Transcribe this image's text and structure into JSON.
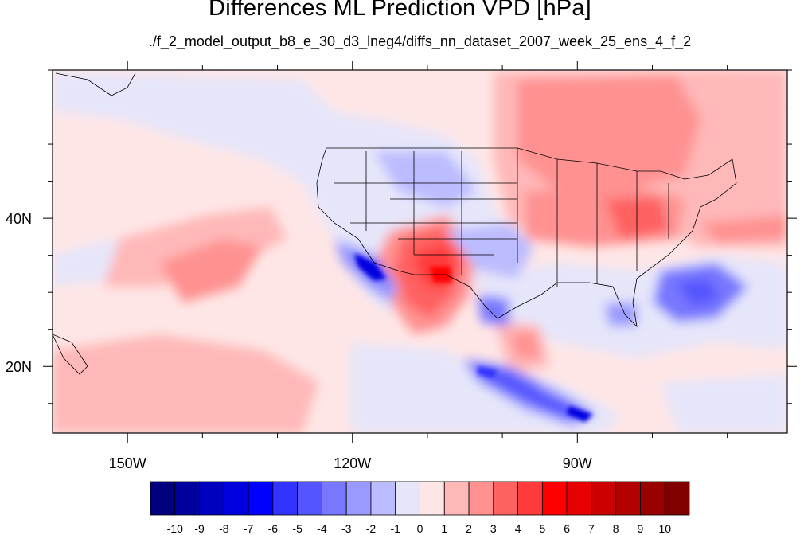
{
  "title": "Differences ML Prediction VPD [hPa]",
  "subtitle": "./f_2_model_output_b8_e_30_d3_lneg4/diffs_nn_dataset_2007_week_25_ens_4_f_2",
  "map": {
    "lon_range": [
      -160,
      -62
    ],
    "lat_range": [
      11,
      60
    ],
    "lon_ticks": [
      {
        "lon": -150,
        "label": "150W"
      },
      {
        "lon": -120,
        "label": "120W"
      },
      {
        "lon": -90,
        "label": "90W"
      }
    ],
    "lat_ticks": [
      {
        "lat": 40,
        "label": "40N"
      },
      {
        "lat": 20,
        "label": "20N"
      }
    ]
  },
  "colorbar": {
    "colors": [
      "#00007f",
      "#00009f",
      "#0000bf",
      "#0000df",
      "#0000ff",
      "#3333ff",
      "#5555ff",
      "#7777ff",
      "#9999ff",
      "#bbbbff",
      "#e6e6fa",
      "#ffe6e6",
      "#ffb8b8",
      "#ff9191",
      "#ff6161",
      "#ff3a3a",
      "#ff0000",
      "#e60000",
      "#cc0000",
      "#b30000",
      "#990000",
      "#800000"
    ],
    "labels": [
      "-10",
      "-9",
      "-8",
      "-7",
      "-6",
      "-5",
      "-4",
      "-3",
      "-2",
      "-1",
      "0",
      "1",
      "2",
      "3",
      "4",
      "5",
      "6",
      "7",
      "8",
      "9",
      "10"
    ]
  }
}
